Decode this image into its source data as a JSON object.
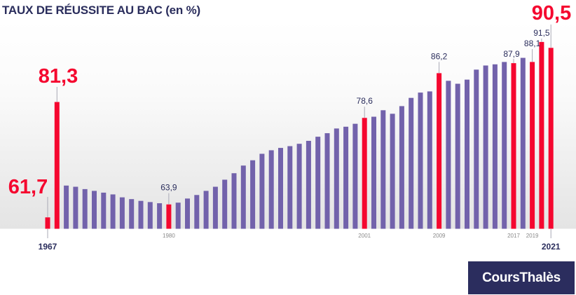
{
  "title": "TAUX DE RÉUSSITE AU BAC (en %)",
  "logo": "CoursThalès",
  "chart_data": {
    "type": "bar",
    "title": "TAUX DE RÉUSSITE AU BAC (en %)",
    "xlabel": "",
    "ylabel": "",
    "ylim": [
      59.7,
      92
    ],
    "grid": false,
    "colors": {
      "default": "#7262ab",
      "highlight": "#f5072f",
      "label": "#2a2d5c",
      "year_small": "#8a8a8a"
    },
    "categories": [
      1967,
      1968,
      1969,
      1970,
      1971,
      1972,
      1973,
      1974,
      1975,
      1976,
      1977,
      1978,
      1979,
      1980,
      1981,
      1982,
      1983,
      1984,
      1985,
      1986,
      1987,
      1988,
      1989,
      1990,
      1991,
      1992,
      1993,
      1994,
      1995,
      1996,
      1997,
      1998,
      1999,
      2000,
      2001,
      2002,
      2003,
      2004,
      2005,
      2006,
      2007,
      2008,
      2009,
      2010,
      2011,
      2012,
      2013,
      2014,
      2015,
      2016,
      2017,
      2018,
      2019,
      2020,
      2021
    ],
    "values": [
      61.7,
      81.3,
      67.1,
      66.9,
      66.5,
      66.2,
      65.9,
      65.6,
      65.1,
      64.8,
      64.5,
      64.3,
      64.1,
      63.9,
      64.2,
      64.9,
      65.5,
      66.2,
      66.9,
      68.1,
      69.2,
      70.5,
      71.4,
      72.5,
      73.1,
      73.5,
      73.8,
      74.2,
      74.7,
      75.4,
      76.0,
      76.8,
      77.1,
      77.6,
      78.6,
      78.8,
      79.9,
      79.3,
      80.6,
      82.0,
      82.9,
      83.1,
      86.2,
      84.9,
      84.4,
      85.1,
      86.8,
      87.5,
      87.7,
      88.1,
      87.9,
      88.8,
      88.1,
      91.5,
      90.5
    ],
    "highlighted": [
      1967,
      1968,
      1980,
      2001,
      2009,
      2017,
      2019,
      2020,
      2021
    ],
    "data_labels": [
      {
        "year": 1967,
        "text": "61,7",
        "style": "big"
      },
      {
        "year": 1968,
        "text": "81,3",
        "style": "big"
      },
      {
        "year": 1980,
        "text": "63,9",
        "style": "small"
      },
      {
        "year": 2001,
        "text": "78,6",
        "style": "small"
      },
      {
        "year": 2009,
        "text": "86,2",
        "style": "small"
      },
      {
        "year": 2017,
        "text": "87,9",
        "style": "small"
      },
      {
        "year": 2019,
        "text": "88,1",
        "style": "small"
      },
      {
        "year": 2020,
        "text": "91,5",
        "style": "small"
      },
      {
        "year": 2021,
        "text": "90,5",
        "style": "big"
      }
    ],
    "tick_labels": [
      {
        "year": 1967,
        "text": "1967",
        "style": "bold"
      },
      {
        "year": 1980,
        "text": "1980",
        "style": "small"
      },
      {
        "year": 2001,
        "text": "2001",
        "style": "small"
      },
      {
        "year": 2009,
        "text": "2009",
        "style": "small"
      },
      {
        "year": 2017,
        "text": "2017",
        "style": "small"
      },
      {
        "year": 2019,
        "text": "2019",
        "style": "small"
      },
      {
        "year": 2021,
        "text": "2021",
        "style": "bold"
      }
    ]
  }
}
